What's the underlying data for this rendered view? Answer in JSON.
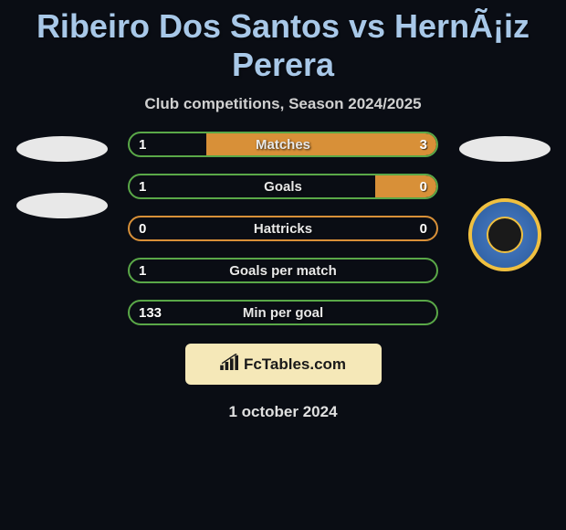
{
  "header": {
    "title": "Ribeiro Dos Santos vs HernÃ¡iz Perera",
    "subtitle": "Club competitions, Season 2024/2025"
  },
  "colors": {
    "background": "#0a0d14",
    "title_color": "#a8c8e8",
    "green": "#5aa848",
    "orange": "#d89038",
    "placeholder": "#e8e8e8",
    "branding_bg": "#f5e8b8",
    "badge_blue": "#4a7ec8",
    "badge_gold": "#f0c040"
  },
  "stats": [
    {
      "label": "Matches",
      "left_value": "1",
      "right_value": "3",
      "border_color": "#5aa848",
      "right_fill_color": "#d89038",
      "right_fill_pct": 75
    },
    {
      "label": "Goals",
      "left_value": "1",
      "right_value": "0",
      "border_color": "#5aa848",
      "right_fill_color": "#d89038",
      "right_fill_pct": 20
    },
    {
      "label": "Hattricks",
      "left_value": "0",
      "right_value": "0",
      "border_color": "#d89038",
      "right_fill_color": "transparent",
      "right_fill_pct": 0
    },
    {
      "label": "Goals per match",
      "left_value": "1",
      "right_value": "",
      "border_color": "#5aa848",
      "right_fill_color": "transparent",
      "right_fill_pct": 0
    },
    {
      "label": "Min per goal",
      "left_value": "133",
      "right_value": "",
      "border_color": "#5aa848",
      "right_fill_color": "transparent",
      "right_fill_pct": 0
    }
  ],
  "branding": {
    "text": "FcTables.com"
  },
  "footer": {
    "date": "1 october 2024"
  }
}
